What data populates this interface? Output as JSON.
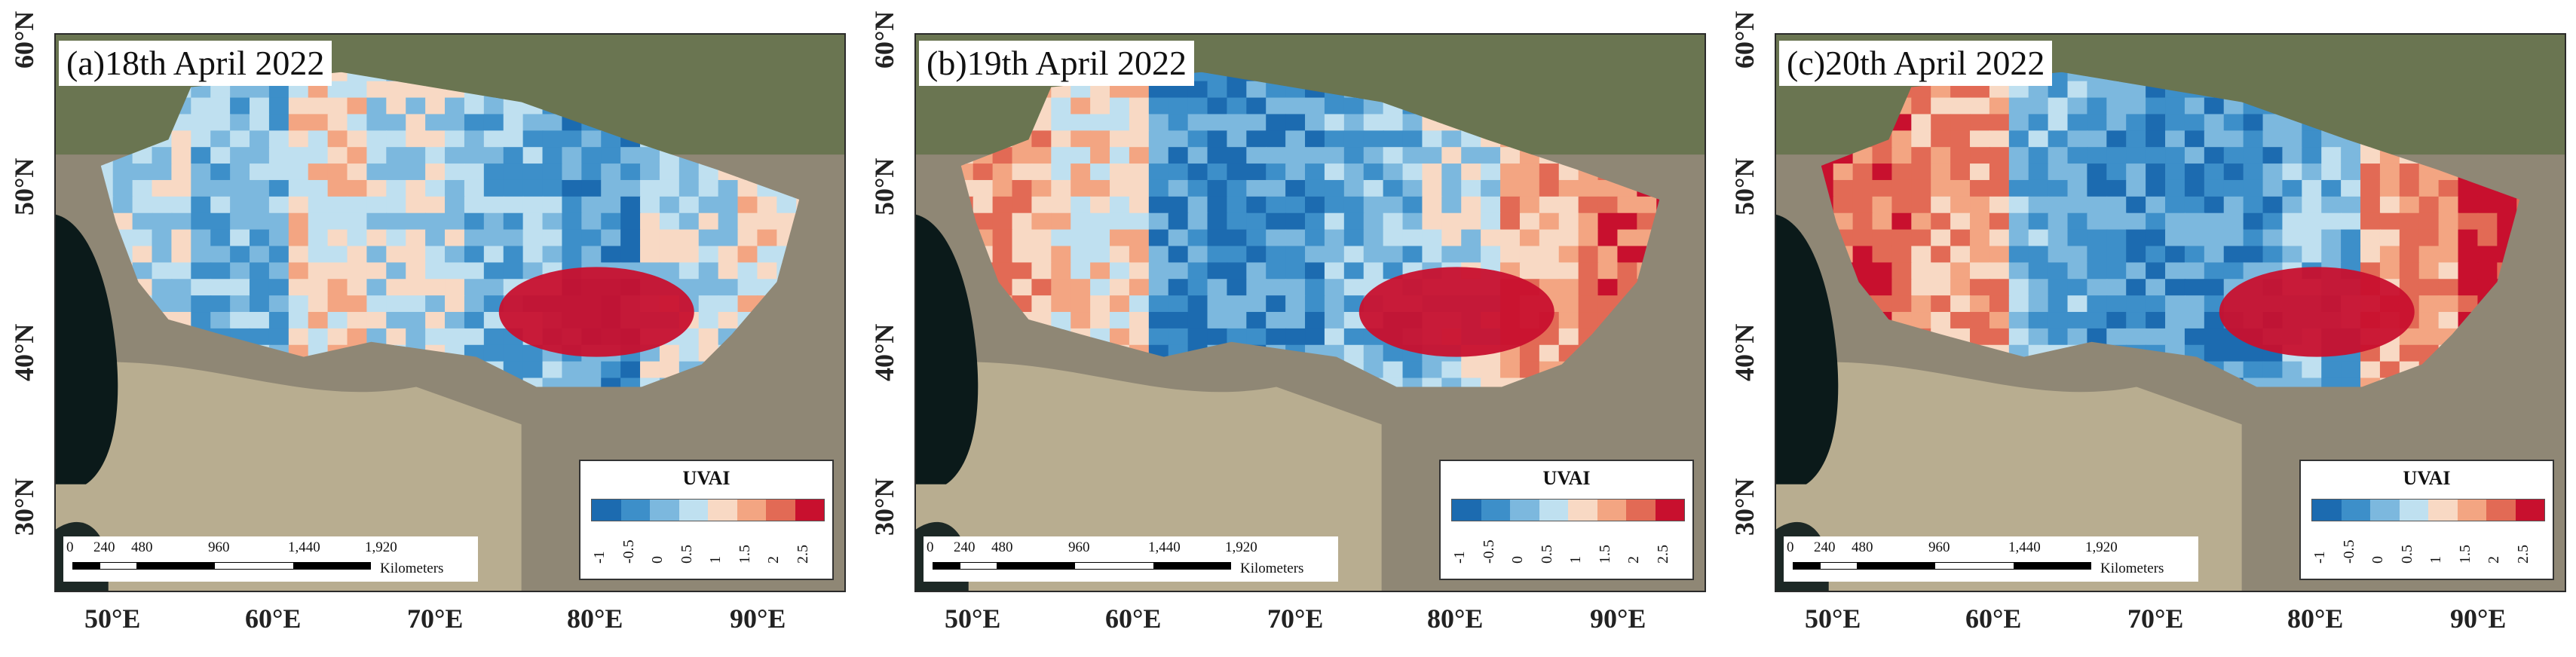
{
  "panels": [
    {
      "title": "(a)18th April 2022",
      "variant": 0
    },
    {
      "title": "(b)19th April 2022",
      "variant": 1
    },
    {
      "title": "(c)20th April 2022",
      "variant": 2
    }
  ],
  "lat_labels": [
    "60°N",
    "50°N",
    "40°N",
    "30°N"
  ],
  "lon_labels": [
    "50°E",
    "60°E",
    "70°E",
    "80°E",
    "90°E"
  ],
  "legend": {
    "title": "UVAI",
    "ticks": [
      "-1",
      "-0.5",
      "0",
      "0.5",
      "1",
      "1.5",
      "2",
      "2.5"
    ],
    "colors": [
      "#1c6bb0",
      "#3d8fc9",
      "#7cb8de",
      "#bfe0f0",
      "#f8d9c4",
      "#f3a582",
      "#e26a55",
      "#c8102e"
    ]
  },
  "scalebar": {
    "ticks": [
      "0",
      "240",
      "480",
      "960",
      "1,440",
      "1,920"
    ],
    "unit": "Kilometers"
  },
  "colors": {
    "ocean": "#0b1a1a",
    "terrain_desert": "#b8ad90",
    "terrain_green": "#5e6f46",
    "terrain_mountain": "#8f8775"
  }
}
